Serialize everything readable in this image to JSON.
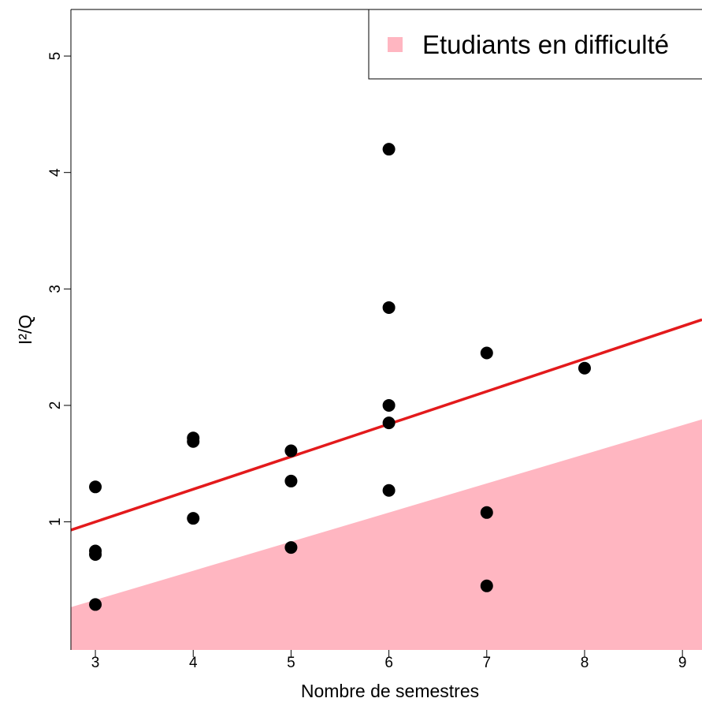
{
  "chart_data": {
    "type": "scatter",
    "xlabel": "Nombre de semestres",
    "ylabel": "I²/Q",
    "xlim": [
      2.75,
      9.2
    ],
    "ylim": [
      -0.1,
      5.4
    ],
    "x_ticks": [
      "3",
      "4",
      "5",
      "6",
      "7",
      "8",
      "9"
    ],
    "y_ticks": [
      "1",
      "2",
      "3",
      "4",
      "5"
    ],
    "points": [
      {
        "x": 3,
        "y": 1.3
      },
      {
        "x": 3,
        "y": 0.75
      },
      {
        "x": 3,
        "y": 0.72
      },
      {
        "x": 3,
        "y": 0.29
      },
      {
        "x": 4,
        "y": 1.72
      },
      {
        "x": 4,
        "y": 1.69
      },
      {
        "x": 4,
        "y": 1.03
      },
      {
        "x": 5,
        "y": 1.61
      },
      {
        "x": 5,
        "y": 1.35
      },
      {
        "x": 5,
        "y": 0.78
      },
      {
        "x": 6,
        "y": 4.2
      },
      {
        "x": 6,
        "y": 2.84
      },
      {
        "x": 6,
        "y": 2.0
      },
      {
        "x": 6,
        "y": 1.85
      },
      {
        "x": 6,
        "y": 1.27
      },
      {
        "x": 7,
        "y": 2.45
      },
      {
        "x": 7,
        "y": 1.08
      },
      {
        "x": 7,
        "y": 0.45
      },
      {
        "x": 8,
        "y": 2.32
      }
    ],
    "regression_line": {
      "slope": 0.28,
      "intercept": 0.16,
      "color": "#e31a1c"
    },
    "shaded_region": {
      "name": "Etudiants en difficulté",
      "color": "#ffb6c1",
      "upper_boundary": {
        "slope": 0.25,
        "intercept": -0.42
      }
    },
    "legend": {
      "position": "top-right",
      "entries": [
        "Etudiants en difficulté"
      ]
    },
    "grid": false
  }
}
